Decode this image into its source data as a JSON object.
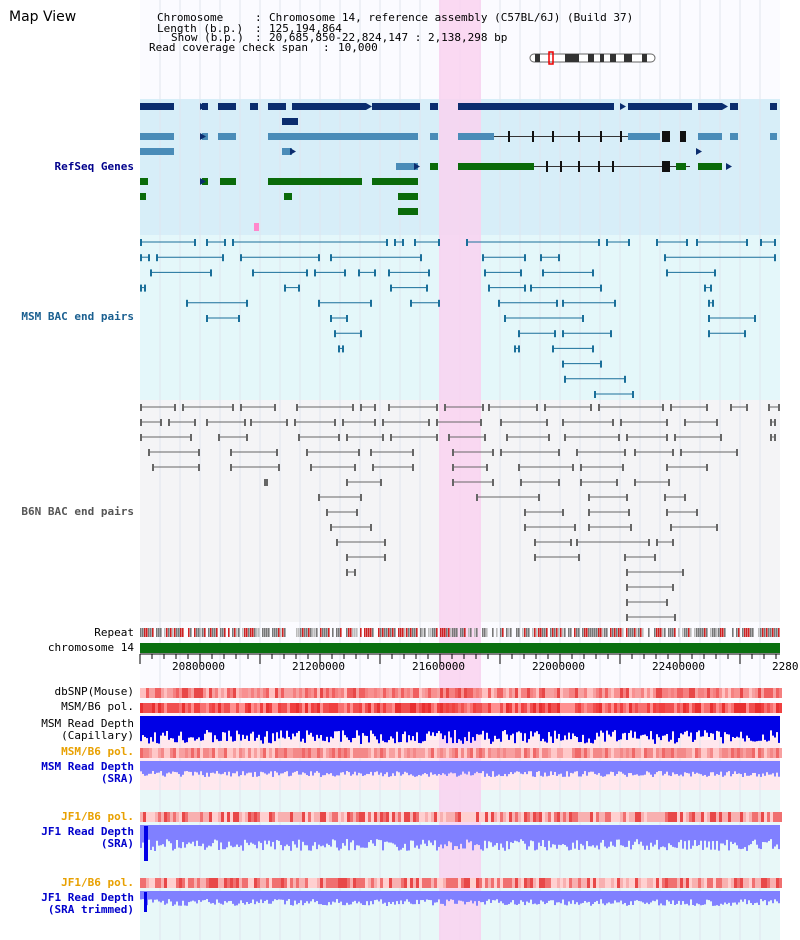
{
  "view_title": "Map View",
  "header": {
    "chromosome_label": "Chromosome",
    "chromosome_value": "Chromosome 14, reference assembly (C57BL/6J) (Build 37)",
    "length_label": "Length (b.p.)",
    "length_value": "125,194,864",
    "show_label": "Show (b.p.)",
    "show_value": "20,685,850-22,824,147 : 2,138,298 bp",
    "coverage_label": "Read coverage check span",
    "coverage_value": "10,000"
  },
  "tracks": {
    "refseq": "RefSeq Genes",
    "msm_bac": "MSM BAC end pairs",
    "b6n_bac": "B6N BAC end pairs",
    "repeat": "Repeat",
    "chromosome": "chromosome 14",
    "dbsnp": "dbSNP(Mouse)",
    "msm_b6_pol": "MSM/B6 pol.",
    "msm_depth_1": "MSM Read Depth",
    "msm_depth_2": "(Capillary)",
    "msm_b6_pol2": "MSM/B6 pol.",
    "msm_sra_1": "MSM Read Depth",
    "msm_sra_2": "(SRA)",
    "jf1_pol": "JF1/B6 pol.",
    "jf1_depth_1": "JF1 Read Depth",
    "jf1_depth_2": "(SRA)",
    "jf1_pol2": "JF1/B6 pol.",
    "jf1_trim_1": "JF1 Read Depth",
    "jf1_trim_2": "(SRA trimmed)"
  },
  "axis": {
    "ticks": [
      "20800000",
      "21200000",
      "21600000",
      "22000000",
      "22400000",
      "2280"
    ]
  },
  "colors": {
    "refseq_bg": "#d7eef8",
    "msm_bg": "#e4f7fa",
    "b6n_bg": "#f4f4f6",
    "highlight": "#f9d2f0",
    "gene_navy": "#0b2d6e",
    "gene_teal": "#4a8cb8",
    "gene_green": "#0a6b0a",
    "msm_line": "#1a6f9a",
    "b6n_line": "#666666",
    "chrom_green": "#0a7010",
    "depth_blue": "#0000e6",
    "depth_light": "#8080ff"
  }
}
